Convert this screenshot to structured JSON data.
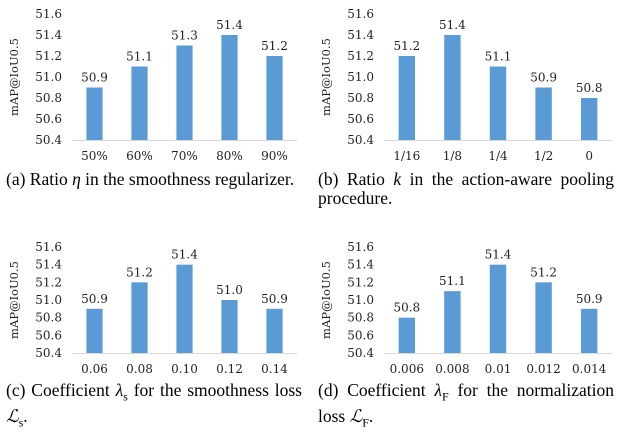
{
  "chart_data": [
    {
      "type": "bar",
      "ylabel": "mAP@IoU0.5",
      "caption": "(a) Ratio η in the smoothness regularizer.",
      "categories": [
        "50%",
        "60%",
        "70%",
        "80%",
        "90%"
      ],
      "values": [
        50.9,
        51.1,
        51.3,
        51.4,
        51.2
      ],
      "ylim": [
        50.4,
        51.6
      ],
      "yticks": [
        "50.4",
        "50.6",
        "50.8",
        "51.0",
        "51.2",
        "51.4",
        "51.6"
      ],
      "color": "#5b9bd5"
    },
    {
      "type": "bar",
      "ylabel": "mAP@IoU0.5",
      "caption": "(b) Ratio k in the action-aware pooling procedure.",
      "categories": [
        "1/16",
        "1/8",
        "1/4",
        "1/2",
        "0"
      ],
      "values": [
        51.2,
        51.4,
        51.1,
        50.9,
        50.8
      ],
      "ylim": [
        50.4,
        51.6
      ],
      "yticks": [
        "50.4",
        "50.6",
        "50.8",
        "51.0",
        "51.2",
        "51.4",
        "51.6"
      ],
      "color": "#5b9bd5"
    },
    {
      "type": "bar",
      "ylabel": "mAP@IoU0.5",
      "caption": "(c) Coefficient λs for the smoothness loss ℒs.",
      "categories": [
        "0.06",
        "0.08",
        "0.10",
        "0.12",
        "0.14"
      ],
      "values": [
        50.9,
        51.2,
        51.4,
        51.0,
        50.9
      ],
      "ylim": [
        50.4,
        51.6
      ],
      "yticks": [
        "50.4",
        "50.6",
        "50.8",
        "51.0",
        "51.2",
        "51.4",
        "51.6"
      ],
      "color": "#5b9bd5"
    },
    {
      "type": "bar",
      "ylabel": "mAP@IoU0.5",
      "caption": "(d) Coefficient λF for the normalization loss ℒF.",
      "categories": [
        "0.006",
        "0.008",
        "0.01",
        "0.012",
        "0.014"
      ],
      "values": [
        50.8,
        51.1,
        51.4,
        51.2,
        50.9
      ],
      "ylim": [
        50.4,
        51.6
      ],
      "yticks": [
        "50.4",
        "50.6",
        "50.8",
        "51.0",
        "51.2",
        "51.4",
        "51.6"
      ],
      "color": "#5b9bd5"
    }
  ]
}
